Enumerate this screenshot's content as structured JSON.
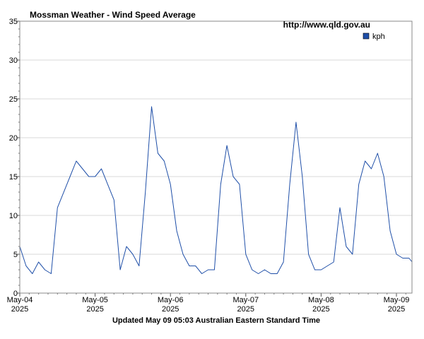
{
  "chart_data": {
    "type": "line",
    "title": "Mossman Weather - Wind Speed Average",
    "source": "http://www.qld.gov.au",
    "footer": "Updated May 09 05:03 Australian Eastern Standard Time",
    "ylim": [
      0,
      35
    ],
    "y_ticks": [
      "0",
      "5",
      "10",
      "15",
      "20",
      "25",
      "30",
      "35"
    ],
    "x_ticks": [
      {
        "month": "May-04",
        "year": "2025"
      },
      {
        "month": "May-05",
        "year": "2025"
      },
      {
        "month": "May-06",
        "year": "2025"
      },
      {
        "month": "May-07",
        "year": "2025"
      },
      {
        "month": "May-08",
        "year": "2025"
      },
      {
        "month": "May-09",
        "year": "2025"
      }
    ],
    "grid": true,
    "legend_position": "top-right",
    "series": [
      {
        "name": "kph",
        "color": "#1f4fa8",
        "x": [
          "2025-05-04 00:00",
          "2025-05-04 02:00",
          "2025-05-04 04:00",
          "2025-05-04 06:00",
          "2025-05-04 08:00",
          "2025-05-04 10:00",
          "2025-05-04 12:00",
          "2025-05-04 14:00",
          "2025-05-04 16:00",
          "2025-05-04 18:00",
          "2025-05-04 20:00",
          "2025-05-04 22:00",
          "2025-05-05 00:00",
          "2025-05-05 02:00",
          "2025-05-05 04:00",
          "2025-05-05 06:00",
          "2025-05-05 08:00",
          "2025-05-05 10:00",
          "2025-05-05 12:00",
          "2025-05-05 14:00",
          "2025-05-05 16:00",
          "2025-05-05 18:00",
          "2025-05-05 20:00",
          "2025-05-05 22:00",
          "2025-05-06 00:00",
          "2025-05-06 02:00",
          "2025-05-06 04:00",
          "2025-05-06 06:00",
          "2025-05-06 08:00",
          "2025-05-06 10:00",
          "2025-05-06 12:00",
          "2025-05-06 14:00",
          "2025-05-06 16:00",
          "2025-05-06 18:00",
          "2025-05-06 20:00",
          "2025-05-06 22:00",
          "2025-05-07 00:00",
          "2025-05-07 02:00",
          "2025-05-07 04:00",
          "2025-05-07 06:00",
          "2025-05-07 08:00",
          "2025-05-07 10:00",
          "2025-05-07 12:00",
          "2025-05-07 14:00",
          "2025-05-07 16:00",
          "2025-05-07 18:00",
          "2025-05-07 20:00",
          "2025-05-07 22:00",
          "2025-05-08 00:00",
          "2025-05-08 02:00",
          "2025-05-08 04:00",
          "2025-05-08 06:00",
          "2025-05-08 08:00",
          "2025-05-08 10:00",
          "2025-05-08 12:00",
          "2025-05-08 14:00",
          "2025-05-08 16:00",
          "2025-05-08 18:00",
          "2025-05-08 20:00",
          "2025-05-08 22:00",
          "2025-05-09 00:00",
          "2025-05-09 02:00",
          "2025-05-09 04:00",
          "2025-05-09 05:00"
        ],
        "values": [
          6,
          3.5,
          2.5,
          4,
          3,
          2.5,
          11,
          13,
          15,
          17,
          16,
          15,
          15,
          16,
          14,
          12,
          3,
          6,
          5,
          3.5,
          13,
          24,
          18,
          17,
          14,
          8,
          5,
          3.5,
          3.5,
          2.5,
          3,
          3,
          14,
          19,
          15,
          14,
          5,
          3,
          2.5,
          3,
          2.5,
          2.5,
          4,
          14,
          22,
          15,
          5,
          3,
          3,
          3.5,
          4,
          11,
          6,
          5,
          14,
          17,
          16,
          18,
          15,
          8,
          5,
          4.5,
          4.5,
          4
        ]
      }
    ]
  }
}
